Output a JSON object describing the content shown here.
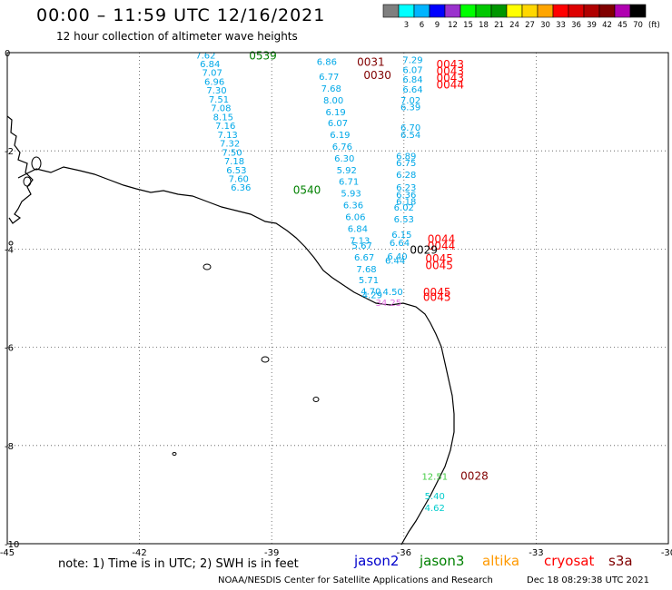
{
  "header": {
    "title": "00:00 – 11:59 UTC 12/16/2021",
    "subtitle": "12 hour collection of altimeter wave heights"
  },
  "colorbar": {
    "unit": "(ft)",
    "levels": [
      {
        "label": "",
        "color": "#7f7f7f"
      },
      {
        "label": "3",
        "color": "#00ffff"
      },
      {
        "label": "6",
        "color": "#00b4ff"
      },
      {
        "label": "9",
        "color": "#0000ff"
      },
      {
        "label": "12",
        "color": "#9a32cd"
      },
      {
        "label": "15",
        "color": "#00ff00"
      },
      {
        "label": "18",
        "color": "#00c800"
      },
      {
        "label": "21",
        "color": "#009600"
      },
      {
        "label": "24",
        "color": "#ffff00"
      },
      {
        "label": "27",
        "color": "#ffd700"
      },
      {
        "label": "30",
        "color": "#ffa500"
      },
      {
        "label": "33",
        "color": "#ff0000"
      },
      {
        "label": "36",
        "color": "#dd0000"
      },
      {
        "label": "39",
        "color": "#b00000"
      },
      {
        "label": "42",
        "color": "#800000"
      },
      {
        "label": "45",
        "color": "#b000b0"
      },
      {
        "label": "70",
        "color": "#000000"
      }
    ]
  },
  "map": {
    "lon_ticks": [
      "-45",
      "-42",
      "-39",
      "-36",
      "-33",
      "-30"
    ],
    "lat_ticks": [
      "0",
      "-2",
      "-4",
      "-6",
      "-8",
      "-10"
    ],
    "lon_range": [
      -45,
      -30
    ],
    "lat_range": [
      -10,
      0
    ]
  },
  "tracks": [
    {
      "color": "#00a8e8",
      "points": [
        {
          "lon": -40.5,
          "lat": -0.05,
          "v": "7.62"
        },
        {
          "lon": -40.4,
          "lat": -0.22,
          "v": "6.84"
        },
        {
          "lon": -40.35,
          "lat": -0.4,
          "v": "7.07"
        },
        {
          "lon": -40.3,
          "lat": -0.58,
          "v": "6.96"
        },
        {
          "lon": -40.25,
          "lat": -0.76,
          "v": "7.30"
        },
        {
          "lon": -40.2,
          "lat": -0.94,
          "v": "7.51"
        },
        {
          "lon": -40.15,
          "lat": -1.12,
          "v": "7.08"
        },
        {
          "lon": -40.1,
          "lat": -1.3,
          "v": "8.15"
        },
        {
          "lon": -40.05,
          "lat": -1.48,
          "v": "7.16"
        },
        {
          "lon": -40.0,
          "lat": -1.66,
          "v": "7.13"
        },
        {
          "lon": -39.95,
          "lat": -1.84,
          "v": "7.32"
        },
        {
          "lon": -39.9,
          "lat": -2.02,
          "v": "7.50"
        },
        {
          "lon": -39.85,
          "lat": -2.2,
          "v": "7.18"
        },
        {
          "lon": -39.8,
          "lat": -2.38,
          "v": "6.53"
        },
        {
          "lon": -39.75,
          "lat": -2.56,
          "v": "7.60"
        },
        {
          "lon": -39.7,
          "lat": -2.74,
          "v": "6.36"
        }
      ]
    },
    {
      "color": "#00a8e8",
      "points": [
        {
          "lon": -37.75,
          "lat": -0.18,
          "v": "6.86"
        },
        {
          "lon": -37.7,
          "lat": -0.48,
          "v": "6.77"
        },
        {
          "lon": -37.65,
          "lat": -0.72,
          "v": "7.68"
        },
        {
          "lon": -37.6,
          "lat": -0.96,
          "v": "8.00"
        },
        {
          "lon": -37.55,
          "lat": -1.2,
          "v": "6.19"
        },
        {
          "lon": -37.5,
          "lat": -1.42,
          "v": "6.07"
        },
        {
          "lon": -37.45,
          "lat": -1.66,
          "v": "6.19"
        },
        {
          "lon": -37.4,
          "lat": -1.9,
          "v": "6.76"
        },
        {
          "lon": -37.35,
          "lat": -2.14,
          "v": "6.30"
        },
        {
          "lon": -37.3,
          "lat": -2.38,
          "v": "5.92"
        },
        {
          "lon": -37.25,
          "lat": -2.62,
          "v": "6.71"
        },
        {
          "lon": -37.2,
          "lat": -2.86,
          "v": "5.93"
        },
        {
          "lon": -37.15,
          "lat": -3.1,
          "v": "6.36"
        },
        {
          "lon": -37.1,
          "lat": -3.34,
          "v": "6.06"
        },
        {
          "lon": -37.05,
          "lat": -3.58,
          "v": "6.84"
        },
        {
          "lon": -37.0,
          "lat": -3.82,
          "v": "7.13"
        },
        {
          "lon": -36.95,
          "lat": -3.92,
          "v": "5.67"
        },
        {
          "lon": -36.9,
          "lat": -4.16,
          "v": "6.67"
        },
        {
          "lon": -36.85,
          "lat": -4.4,
          "v": "7.68"
        },
        {
          "lon": -36.8,
          "lat": -4.62,
          "v": "5.71"
        },
        {
          "lon": -36.75,
          "lat": -4.85,
          "v": "4.70"
        },
        {
          "lon": -36.72,
          "lat": -4.93,
          "v": "4.29"
        }
      ]
    },
    {
      "color": "#00a8e8",
      "points": [
        {
          "lon": -35.8,
          "lat": -0.14,
          "v": "7.29"
        },
        {
          "lon": -35.8,
          "lat": -0.34,
          "v": "6.07"
        },
        {
          "lon": -35.8,
          "lat": -0.54,
          "v": "6.84"
        },
        {
          "lon": -35.8,
          "lat": -0.74,
          "v": "6.64"
        },
        {
          "lon": -35.85,
          "lat": -0.96,
          "v": "7.02"
        },
        {
          "lon": -35.85,
          "lat": -1.1,
          "v": "6.39"
        },
        {
          "lon": -35.85,
          "lat": -1.52,
          "v": "6.70"
        },
        {
          "lon": -35.85,
          "lat": -1.66,
          "v": "6.54"
        },
        {
          "lon": -35.95,
          "lat": -2.1,
          "v": "6.89"
        },
        {
          "lon": -35.95,
          "lat": -2.24,
          "v": "6.75"
        },
        {
          "lon": -35.95,
          "lat": -2.48,
          "v": "6.28"
        },
        {
          "lon": -35.95,
          "lat": -2.74,
          "v": "6.23"
        },
        {
          "lon": -35.95,
          "lat": -2.88,
          "v": "6.36"
        },
        {
          "lon": -35.95,
          "lat": -3.02,
          "v": "6.18"
        },
        {
          "lon": -36.0,
          "lat": -3.14,
          "v": "6.02"
        },
        {
          "lon": -36.0,
          "lat": -3.38,
          "v": "6.53"
        },
        {
          "lon": -36.05,
          "lat": -3.7,
          "v": "6.15"
        },
        {
          "lon": -36.1,
          "lat": -3.86,
          "v": "6.64"
        },
        {
          "lon": -36.15,
          "lat": -4.14,
          "v": "6.40"
        },
        {
          "lon": -36.2,
          "lat": -4.22,
          "v": "6.44"
        },
        {
          "lon": -36.25,
          "lat": -4.86,
          "v": "4.50"
        }
      ]
    },
    {
      "color": "#e070e0",
      "points": [
        {
          "lon": -36.35,
          "lat": -5.08,
          "v": "34.25"
        }
      ]
    },
    {
      "color": "#44cc44",
      "points": [
        {
          "lon": -35.3,
          "lat": -8.62,
          "v": "12.51"
        }
      ]
    },
    {
      "color": "#00cccc",
      "points": [
        {
          "lon": -35.3,
          "lat": -9.02,
          "v": "5.40"
        },
        {
          "lon": -35.3,
          "lat": -9.26,
          "v": "4.62"
        }
      ]
    }
  ],
  "times": [
    {
      "lon": -39.2,
      "lat": -0.05,
      "t": "0539",
      "color": "#008000"
    },
    {
      "lon": -38.2,
      "lat": -2.78,
      "t": "0540",
      "color": "#008000"
    },
    {
      "lon": -36.75,
      "lat": -0.18,
      "t": "0031",
      "color": "#800000"
    },
    {
      "lon": -36.6,
      "lat": -0.44,
      "t": "0030",
      "color": "#800000"
    },
    {
      "lon": -34.95,
      "lat": -0.22,
      "t": "0043",
      "color": "#ff0000"
    },
    {
      "lon": -34.95,
      "lat": -0.36,
      "t": "0043",
      "color": "#ff0000"
    },
    {
      "lon": -34.95,
      "lat": -0.5,
      "t": "0043",
      "color": "#ff0000"
    },
    {
      "lon": -34.95,
      "lat": -0.64,
      "t": "0044",
      "color": "#ff0000"
    },
    {
      "lon": -35.15,
      "lat": -3.78,
      "t": "0044",
      "color": "#ff0000"
    },
    {
      "lon": -35.15,
      "lat": -3.92,
      "t": "0044",
      "color": "#ff0000"
    },
    {
      "lon": -35.55,
      "lat": -4.0,
      "t": "0029",
      "color": "#000000"
    },
    {
      "lon": -35.2,
      "lat": -4.18,
      "t": "0045",
      "color": "#ff0000"
    },
    {
      "lon": -35.2,
      "lat": -4.32,
      "t": "0045",
      "color": "#ff0000"
    },
    {
      "lon": -35.25,
      "lat": -4.86,
      "t": "0045",
      "color": "#ff0000"
    },
    {
      "lon": -35.25,
      "lat": -4.96,
      "t": "0045",
      "color": "#ff0000"
    },
    {
      "lon": -34.4,
      "lat": -8.6,
      "t": "0028",
      "color": "#800000"
    }
  ],
  "note": "note: 1) Time is in UTC; 2) SWH is in feet",
  "satellites": [
    {
      "name": "jason2",
      "color": "#0000cc"
    },
    {
      "name": "jason3",
      "color": "#008000"
    },
    {
      "name": "altika",
      "color": "#ff9900"
    },
    {
      "name": "cryosat",
      "color": "#ff0000"
    },
    {
      "name": "s3a",
      "color": "#800000"
    }
  ],
  "footer": {
    "credit": "NOAA/NESDIS Center for Satellite Applications and Research",
    "timestamp": "Dec 18 08:29:38 UTC 2021"
  }
}
